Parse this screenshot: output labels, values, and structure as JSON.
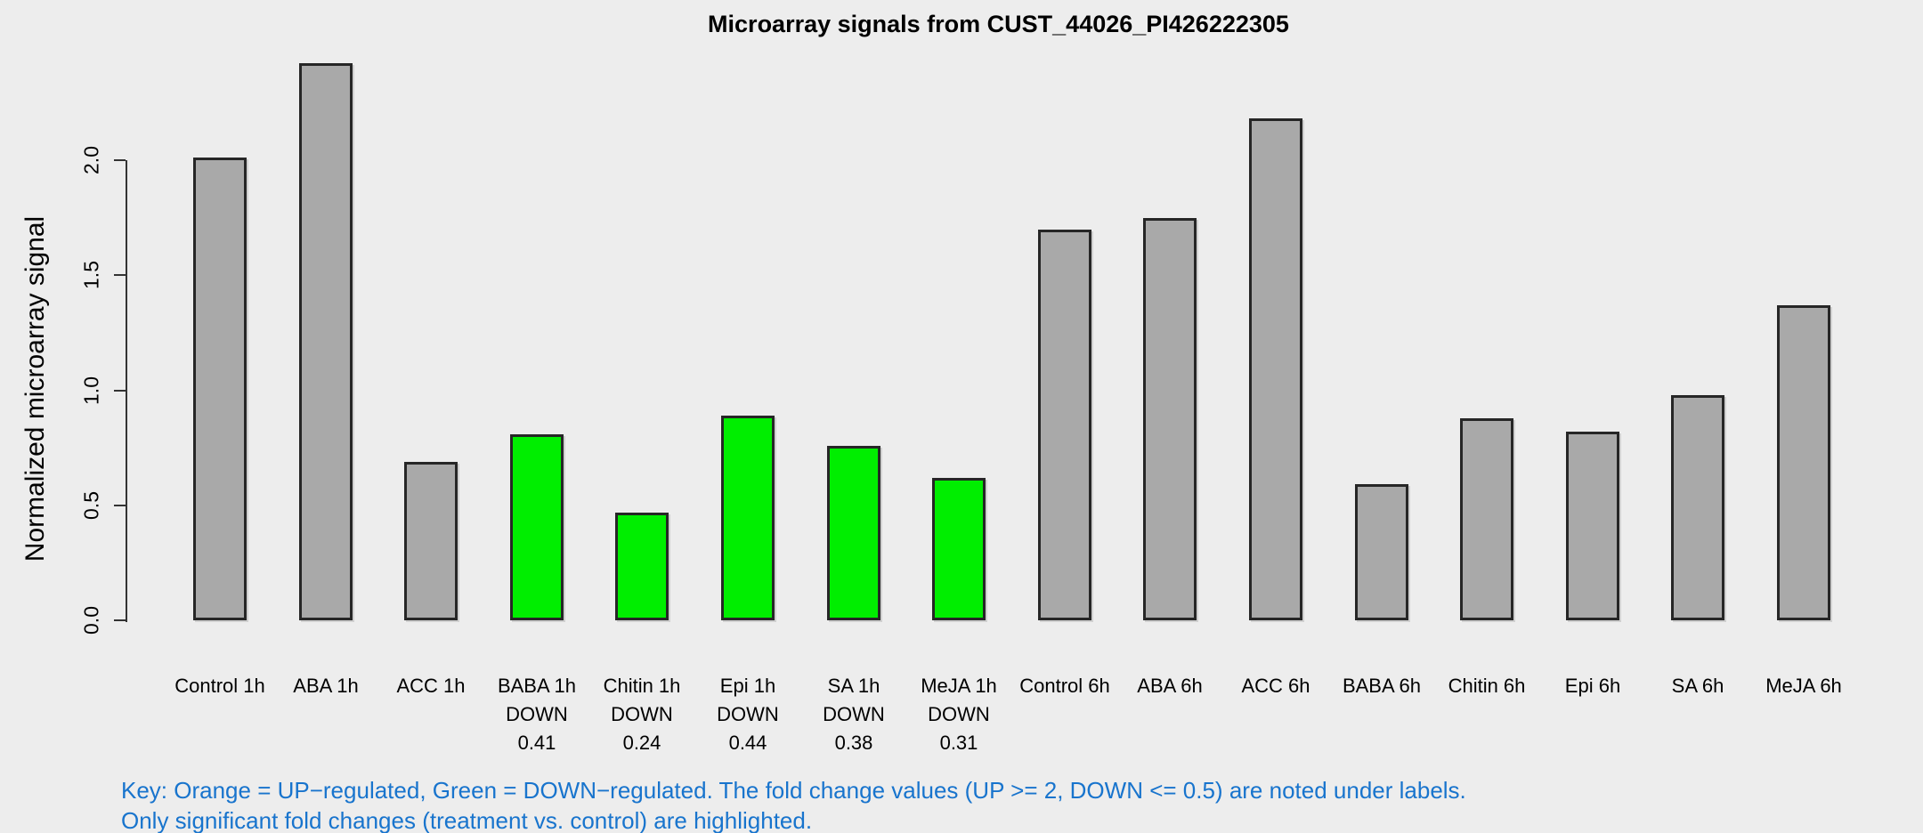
{
  "title": "Microarray signals from CUST_44026_PI426222305",
  "y_axis": {
    "label": "Normalized microarray signal",
    "ticks": [
      {
        "label": "0.0",
        "value": 0.0
      },
      {
        "label": "0.5",
        "value": 0.5
      },
      {
        "label": "1.0",
        "value": 1.0
      },
      {
        "label": "1.5",
        "value": 1.5
      },
      {
        "label": "2.0",
        "value": 2.0
      }
    ]
  },
  "key": {
    "line1": "Key: Orange = UP−regulated, Green = DOWN−regulated. The fold change values (UP >= 2, DOWN <= 0.5) are noted under labels.",
    "line2": "Only significant fold changes (treatment vs. control) are highlighted."
  },
  "colors": {
    "background": "#ededed",
    "bar_default": "#a9a9a9",
    "bar_down": "#00ee00",
    "bar_up": "#ffa500",
    "bar_border": "#262626",
    "axis": "#333333",
    "key_text": "#1874cd",
    "text": "#000000"
  },
  "chart_data": {
    "type": "bar",
    "title": "Microarray signals from CUST_44026_PI426222305",
    "xlabel": "",
    "ylabel": "Normalized microarray signal",
    "ylim": [
      0,
      2.45
    ],
    "grid": false,
    "legend_position": "none",
    "categories": [
      "Control 1h",
      "ABA 1h",
      "ACC 1h",
      "BABA 1h",
      "Chitin 1h",
      "Epi 1h",
      "SA 1h",
      "MeJA 1h",
      "Control 6h",
      "ABA 6h",
      "ACC 6h",
      "BABA 6h",
      "Chitin 6h",
      "Epi 6h",
      "SA 6h",
      "MeJA 6h"
    ],
    "values": [
      2.01,
      2.42,
      0.69,
      0.81,
      0.47,
      0.89,
      0.76,
      0.62,
      1.7,
      1.75,
      2.18,
      0.59,
      0.88,
      0.82,
      0.98,
      1.37
    ],
    "bar_states": [
      "none",
      "none",
      "none",
      "down",
      "down",
      "down",
      "down",
      "down",
      "none",
      "none",
      "none",
      "none",
      "none",
      "none",
      "none",
      "none"
    ],
    "annotations": [
      {
        "category": "BABA 1h",
        "lines": [
          "DOWN",
          "0.41"
        ]
      },
      {
        "category": "Chitin 1h",
        "lines": [
          "DOWN",
          "0.24"
        ]
      },
      {
        "category": "Epi 1h",
        "lines": [
          "DOWN",
          "0.44"
        ]
      },
      {
        "category": "SA 1h",
        "lines": [
          "DOWN",
          "0.38"
        ]
      },
      {
        "category": "MeJA 1h",
        "lines": [
          "DOWN",
          "0.31"
        ]
      }
    ]
  },
  "bars": [
    {
      "label": "Control 1h",
      "value": 2.01,
      "state": "none",
      "sub": []
    },
    {
      "label": "ABA 1h",
      "value": 2.42,
      "state": "none",
      "sub": []
    },
    {
      "label": "ACC 1h",
      "value": 0.69,
      "state": "none",
      "sub": []
    },
    {
      "label": "BABA 1h",
      "value": 0.81,
      "state": "down",
      "sub": [
        "DOWN",
        "0.41"
      ]
    },
    {
      "label": "Chitin 1h",
      "value": 0.47,
      "state": "down",
      "sub": [
        "DOWN",
        "0.24"
      ]
    },
    {
      "label": "Epi 1h",
      "value": 0.89,
      "state": "down",
      "sub": [
        "DOWN",
        "0.44"
      ]
    },
    {
      "label": "SA 1h",
      "value": 0.76,
      "state": "down",
      "sub": [
        "DOWN",
        "0.38"
      ]
    },
    {
      "label": "MeJA 1h",
      "value": 0.62,
      "state": "down",
      "sub": [
        "DOWN",
        "0.31"
      ]
    },
    {
      "label": "Control 6h",
      "value": 1.7,
      "state": "none",
      "sub": []
    },
    {
      "label": "ABA 6h",
      "value": 1.75,
      "state": "none",
      "sub": []
    },
    {
      "label": "ACC 6h",
      "value": 2.18,
      "state": "none",
      "sub": []
    },
    {
      "label": "BABA 6h",
      "value": 0.59,
      "state": "none",
      "sub": []
    },
    {
      "label": "Chitin 6h",
      "value": 0.88,
      "state": "none",
      "sub": []
    },
    {
      "label": "Epi 6h",
      "value": 0.82,
      "state": "none",
      "sub": []
    },
    {
      "label": "SA 6h",
      "value": 0.98,
      "state": "none",
      "sub": []
    },
    {
      "label": "MeJA 6h",
      "value": 1.37,
      "state": "none",
      "sub": []
    }
  ]
}
